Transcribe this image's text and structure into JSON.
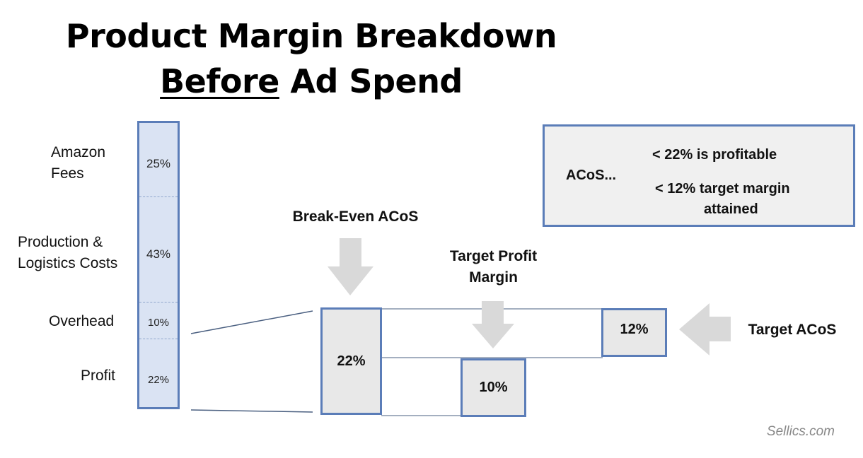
{
  "title": {
    "line1": "Product Margin Breakdown",
    "line2_emphasis": "Before",
    "line2_rest": " Ad Spend"
  },
  "stack": {
    "segments": [
      {
        "label_line1": "Amazon",
        "label_line2": "Fees",
        "value": "25%"
      },
      {
        "label_line1": "Production &",
        "label_line2": "Logistics Costs",
        "value": "43%"
      },
      {
        "label_line1": "Overhead",
        "label_line2": "",
        "value": "10%"
      },
      {
        "label_line1": "Profit",
        "label_line2": "",
        "value": "22%"
      }
    ]
  },
  "breakeven": {
    "label": "Break-Even ACoS",
    "value": "22%"
  },
  "target_profit": {
    "label_line1": "Target Profit",
    "label_line2": "Margin",
    "value": "10%"
  },
  "target_acos": {
    "label": "Target ACoS",
    "value": "12%"
  },
  "info": {
    "prefix": "ACoS...",
    "line1": "< 22% is profitable",
    "line2": "< 12% target margin",
    "line3": "attained"
  },
  "footer": "Sellics.com",
  "colors": {
    "bar_fill": "#dae3f3",
    "border": "#5b7db8",
    "box_fill": "#e8e8e8",
    "arrow": "#d9d9d9"
  }
}
